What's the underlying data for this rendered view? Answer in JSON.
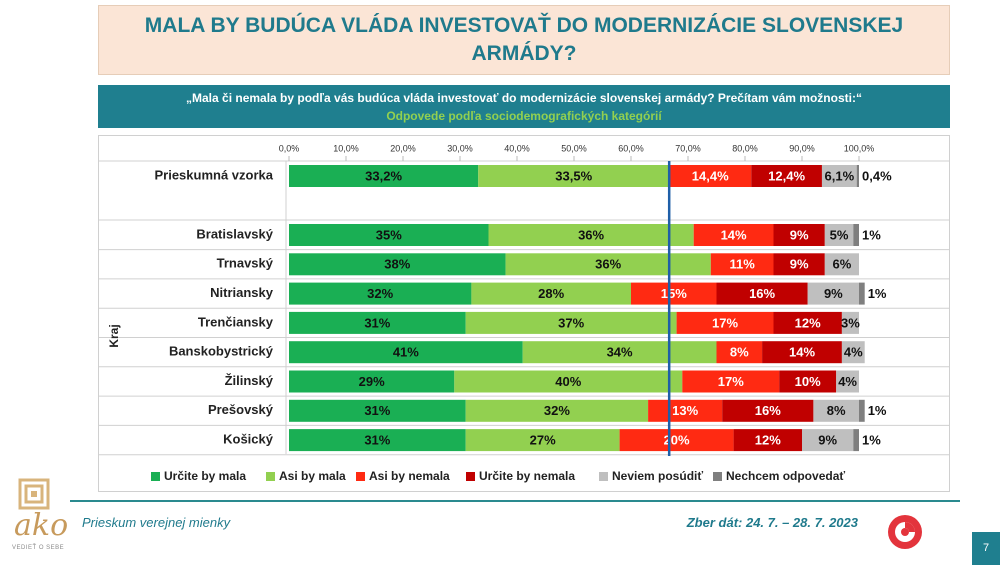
{
  "header": {
    "title": "MALA BY BUDÚCA VLÁDA INVESTOVAŤ DO MODERNIZÁCIE SLOVENSKEJ ARMÁDY?",
    "question": "„Mala či nemala by podľa vás budúca vláda investovať do modernizácie slovenskej armády? Prečítam vám možnosti:“",
    "subtitle": "Odpovede podľa sociodemografických kategórií"
  },
  "chart_data": {
    "type": "bar",
    "orientation": "horizontal",
    "stacked": true,
    "y_label": "Kraj",
    "categories": [
      "Prieskumná vzorka",
      "Bratislavský",
      "Trnavský",
      "Nitriansky",
      "Trenčiansky",
      "Banskobystrický",
      "Žilinský",
      "Prešovský",
      "Košický"
    ],
    "series": [
      {
        "name": "Určite by mala",
        "color": "#1aaf54",
        "values": [
          33.2,
          35,
          38,
          32,
          31,
          41,
          29,
          31,
          31
        ],
        "value_labels": [
          "33,2%",
          "35%",
          "38%",
          "32%",
          "31%",
          "41%",
          "29%",
          "31%",
          "31%"
        ]
      },
      {
        "name": "Asi by mala",
        "color": "#92d050",
        "values": [
          33.5,
          36,
          36,
          28,
          37,
          34,
          40,
          32,
          27
        ],
        "value_labels": [
          "33,5%",
          "36%",
          "36%",
          "28%",
          "37%",
          "34%",
          "40%",
          "32%",
          "27%"
        ]
      },
      {
        "name": "Asi by nemala",
        "color": "#ff2a12",
        "values": [
          14.4,
          14,
          11,
          15,
          17,
          8,
          17,
          13,
          20
        ],
        "value_labels": [
          "14,4%",
          "14%",
          "11%",
          "15%",
          "17%",
          "8%",
          "17%",
          "13%",
          "20%"
        ]
      },
      {
        "name": "Určite by nemala",
        "color": "#c00000",
        "values": [
          12.4,
          9,
          9,
          16,
          12,
          14,
          10,
          16,
          12
        ],
        "value_labels": [
          "12,4%",
          "9%",
          "9%",
          "16%",
          "12%",
          "14%",
          "10%",
          "16%",
          "12%"
        ]
      },
      {
        "name": "Neviem posúdiť",
        "color": "#bfbfbf",
        "values": [
          6.1,
          5,
          6,
          9,
          3,
          4,
          4,
          8,
          9
        ],
        "value_labels": [
          "6,1%",
          "5%",
          "6%",
          "9%",
          "3%",
          "4%",
          "4%",
          "8%",
          "9%"
        ]
      },
      {
        "name": "Nechcem odpovedať",
        "color": "#7f7f7f",
        "values": [
          0.4,
          1,
          null,
          1,
          null,
          null,
          null,
          1,
          1
        ],
        "value_labels": [
          "0,4%",
          "1%",
          null,
          "1%",
          null,
          null,
          null,
          "1%",
          "1%"
        ]
      }
    ],
    "xlim": [
      0,
      100
    ],
    "xticks": [
      {
        "value": 0,
        "label": "0,0%"
      },
      {
        "value": 10,
        "label": "10,0%"
      },
      {
        "value": 20,
        "label": "20,0%"
      },
      {
        "value": 30,
        "label": "30,0%"
      },
      {
        "value": 40,
        "label": "40,0%"
      },
      {
        "value": 50,
        "label": "50,0%"
      },
      {
        "value": 60,
        "label": "60,0%"
      },
      {
        "value": 70,
        "label": "70,0%"
      },
      {
        "value": 80,
        "label": "80,0%"
      },
      {
        "value": 90,
        "label": "90,0%"
      },
      {
        "value": 100,
        "label": "100,0%"
      }
    ],
    "reference_line": 66.7,
    "reference_color": "#1f5fa8",
    "legend": "bottom"
  },
  "footer": {
    "left": "Prieskum verejnej mienky",
    "right": "Zber dát: 24. 7. – 28. 7. 2023",
    "logo": "ako",
    "tagline": "VEDIEŤ O SEBE",
    "page": "7"
  }
}
